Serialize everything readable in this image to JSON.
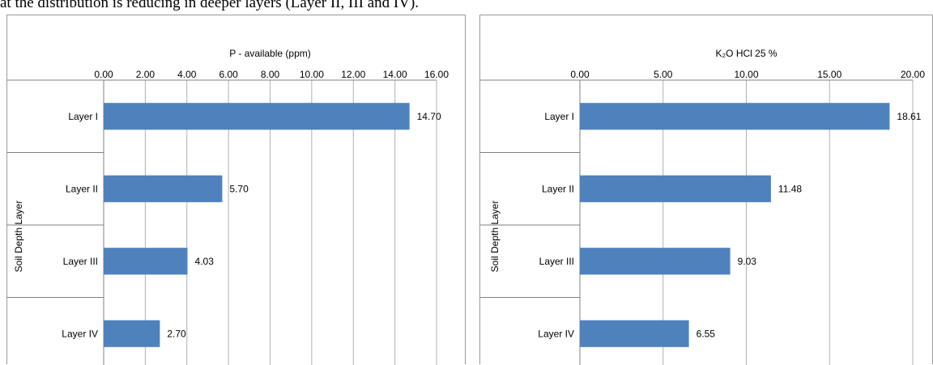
{
  "page": {
    "top_text": "at the distribution is reducing in deeper layers (Layer II, III and IV)."
  },
  "chart_data": [
    {
      "type": "bar",
      "orientation": "horizontal",
      "title": "P -  available (ppm)",
      "ylabel": "Soil Depth Layer",
      "categories": [
        "Layer I",
        "Layer II",
        "Layer III",
        "Layer IV"
      ],
      "values": [
        14.7,
        5.7,
        4.03,
        2.7
      ],
      "data_labels": [
        "14.70",
        "5.70",
        "4.03",
        "2.70"
      ],
      "xlim": [
        0,
        16
      ],
      "ticks": [
        0,
        2,
        4,
        6,
        8,
        10,
        12,
        14,
        16
      ],
      "tick_labels": [
        "0.00",
        "2.00",
        "4.00",
        "6.00",
        "8.00",
        "10.00",
        "12.00",
        "14.00",
        "16.00"
      ],
      "axis_position": "top",
      "grid": true,
      "bar_color": "#4f81bd"
    },
    {
      "type": "bar",
      "orientation": "horizontal",
      "title": "K₂O HCl 25 %",
      "ylabel": "Soil Depth Layer",
      "categories": [
        "Layer I",
        "Layer II",
        "Layer III",
        "Layer IV"
      ],
      "values": [
        18.61,
        11.48,
        9.03,
        6.55
      ],
      "data_labels": [
        "18.61",
        "11.48",
        "9.03",
        "6.55"
      ],
      "xlim": [
        0,
        20
      ],
      "ticks": [
        0,
        5,
        10,
        15,
        20
      ],
      "tick_labels": [
        "0.00",
        "5.00",
        "10.00",
        "15.00",
        "20.00"
      ],
      "axis_position": "top",
      "grid": true,
      "bar_color": "#4f81bd"
    }
  ]
}
